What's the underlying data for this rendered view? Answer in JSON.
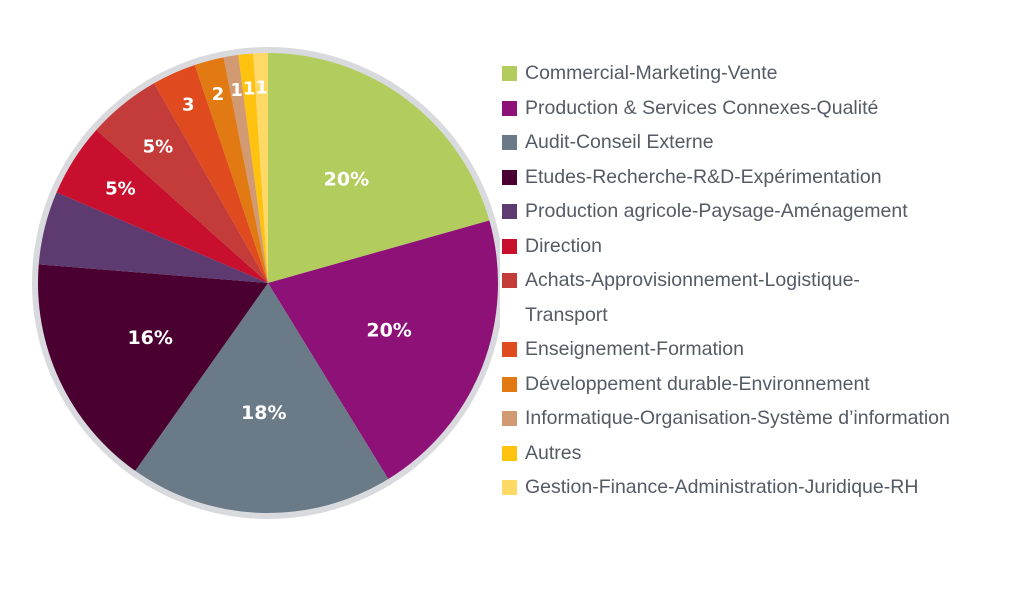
{
  "chart_data": {
    "type": "pie",
    "legend_position": "right",
    "slices": [
      {
        "label": "Commercial-Marketing-Vente",
        "value": 20,
        "display": "20%",
        "color": "#b2cd5e"
      },
      {
        "label": "Production & Services Connexes-Qualité",
        "value": 20,
        "display": "20%",
        "color": "#8e1178"
      },
      {
        "label": "Audit-Conseil Externe",
        "value": 18,
        "display": "18%",
        "color": "#6a7a87"
      },
      {
        "label": "Etudes-Recherche-R&D-Expérimentation",
        "value": 16,
        "display": "16%",
        "color": "#4a0031"
      },
      {
        "label": "Production agricole-Paysage-Aménagement",
        "value": 5,
        "display": "",
        "color": "#5d3a6f"
      },
      {
        "label": "Direction",
        "value": 5,
        "display": "5%",
        "color": "#c8102e"
      },
      {
        "label": "Achats-Approvisionnement-Logistique-Transport",
        "value": 5,
        "display": "5%",
        "color": "#c43c3a"
      },
      {
        "label": "Enseignement-Formation",
        "value": 3,
        "display": "3",
        "color": "#e04a1f"
      },
      {
        "label": "Développement durable-Environnement",
        "value": 2,
        "display": "2",
        "color": "#e27a13"
      },
      {
        "label": "Informatique-Organisation-Système d’information",
        "value": 1,
        "display": "1",
        "color": "#d29a72"
      },
      {
        "label": "Autres",
        "value": 1,
        "display": "1",
        "color": "#ffc20e"
      },
      {
        "label": "Gestion-Finance-Administration-Juridique-RH",
        "value": 1,
        "display": "1",
        "color": "#ffd966"
      }
    ],
    "ring_color": "#d9dadd"
  }
}
